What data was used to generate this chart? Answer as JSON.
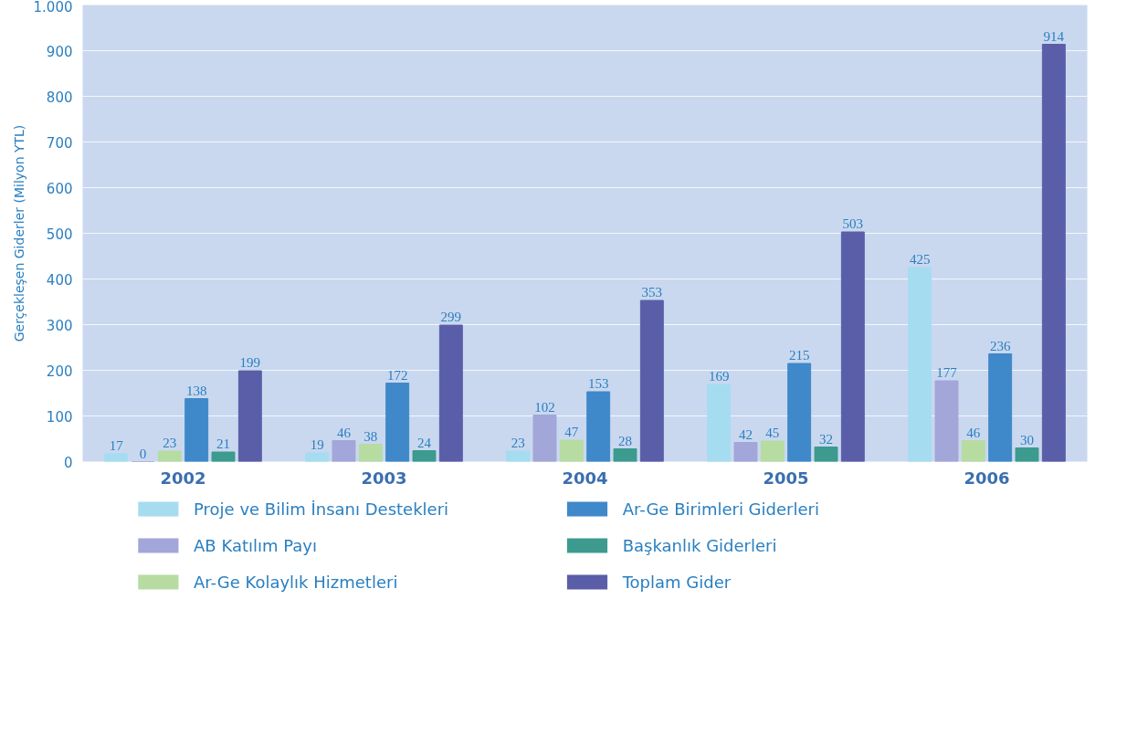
{
  "chart_data": {
    "type": "bar",
    "ylabel": "Gerçekleşen Giderler (Milyon YTL)",
    "categories": [
      "2002",
      "2003",
      "2004",
      "2005",
      "2006"
    ],
    "series": [
      {
        "name": "Proje ve Bilim İnsanı Destekleri",
        "color": "#a6dcf0",
        "values": [
          17,
          19,
          23,
          169,
          425
        ]
      },
      {
        "name": "AB Katılım Payı",
        "color": "#a3a6d8",
        "values": [
          0,
          46,
          102,
          42,
          177
        ]
      },
      {
        "name": "Ar-Ge Kolaylık Hizmetleri",
        "color": "#b6dca2",
        "values": [
          23,
          38,
          47,
          45,
          46
        ]
      },
      {
        "name": "Ar-Ge Birimleri Giderleri",
        "color": "#3f88c9",
        "values": [
          138,
          172,
          153,
          215,
          236
        ]
      },
      {
        "name": "Başkanlık Giderleri",
        "color": "#3c9b8e",
        "values": [
          21,
          24,
          28,
          32,
          30
        ]
      },
      {
        "name": "Toplam Gider",
        "color": "#5a5ea8",
        "values": [
          199,
          299,
          353,
          503,
          914
        ]
      }
    ],
    "ylim": [
      0,
      1000
    ],
    "yticks": [
      {
        "value": 0,
        "label": "0"
      },
      {
        "value": 100,
        "label": "100"
      },
      {
        "value": 200,
        "label": "200"
      },
      {
        "value": 300,
        "label": "300"
      },
      {
        "value": 400,
        "label": "400"
      },
      {
        "value": 500,
        "label": "500"
      },
      {
        "value": 600,
        "label": "600"
      },
      {
        "value": 700,
        "label": "700"
      },
      {
        "value": 800,
        "label": "800"
      },
      {
        "value": 900,
        "label": "900"
      },
      {
        "value": 1000,
        "label": "1.000"
      }
    ],
    "grid": "y",
    "legend": "bottom",
    "data_labels": true
  }
}
